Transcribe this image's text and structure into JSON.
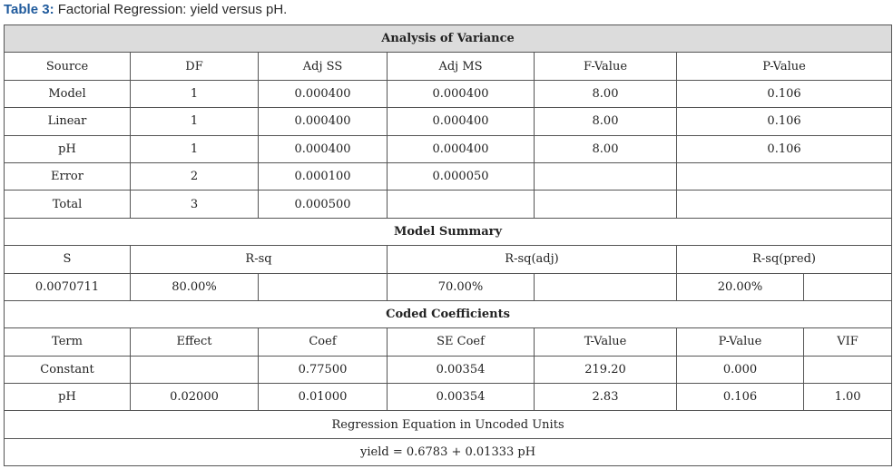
{
  "caption": {
    "label": "Table 3:",
    "text": " Factorial Regression: yield versus pH."
  },
  "anova": {
    "title": "Analysis of Variance",
    "headers": [
      "Source",
      "DF",
      "Adj SS",
      "Adj MS",
      "F-Value",
      "P-Value"
    ],
    "rows": [
      [
        "Model",
        "1",
        "0.000400",
        "0.000400",
        "8.00",
        "0.106"
      ],
      [
        "Linear",
        "1",
        "0.000400",
        "0.000400",
        "8.00",
        "0.106"
      ],
      [
        "pH",
        "1",
        "0.000400",
        "0.000400",
        "8.00",
        "0.106"
      ],
      [
        "Error",
        "2",
        "0.000100",
        "0.000050",
        "",
        ""
      ],
      [
        "Total",
        "3",
        "0.000500",
        "",
        "",
        ""
      ]
    ]
  },
  "model_summary": {
    "title": "Model Summary",
    "headers": [
      "S",
      "R-sq",
      "R-sq(adj)",
      "R-sq(pred)"
    ],
    "values": [
      "0.0070711",
      "80.00%",
      "70.00%",
      "20.00%"
    ]
  },
  "coefficients": {
    "title": "Coded Coefficients",
    "headers": [
      "Term",
      "Effect",
      "Coef",
      "SE Coef",
      "T-Value",
      "P-Value",
      "VIF"
    ],
    "rows": [
      [
        "Constant",
        "",
        "0.77500",
        "0.00354",
        "219.20",
        "0.000",
        ""
      ],
      [
        "pH",
        "0.02000",
        "0.01000",
        "0.00354",
        "2.83",
        "0.106",
        "1.00"
      ]
    ]
  },
  "equation": {
    "title": "Regression Equation in Uncoded Units",
    "text": "yield = 0.6783 + 0.01333 pH"
  }
}
